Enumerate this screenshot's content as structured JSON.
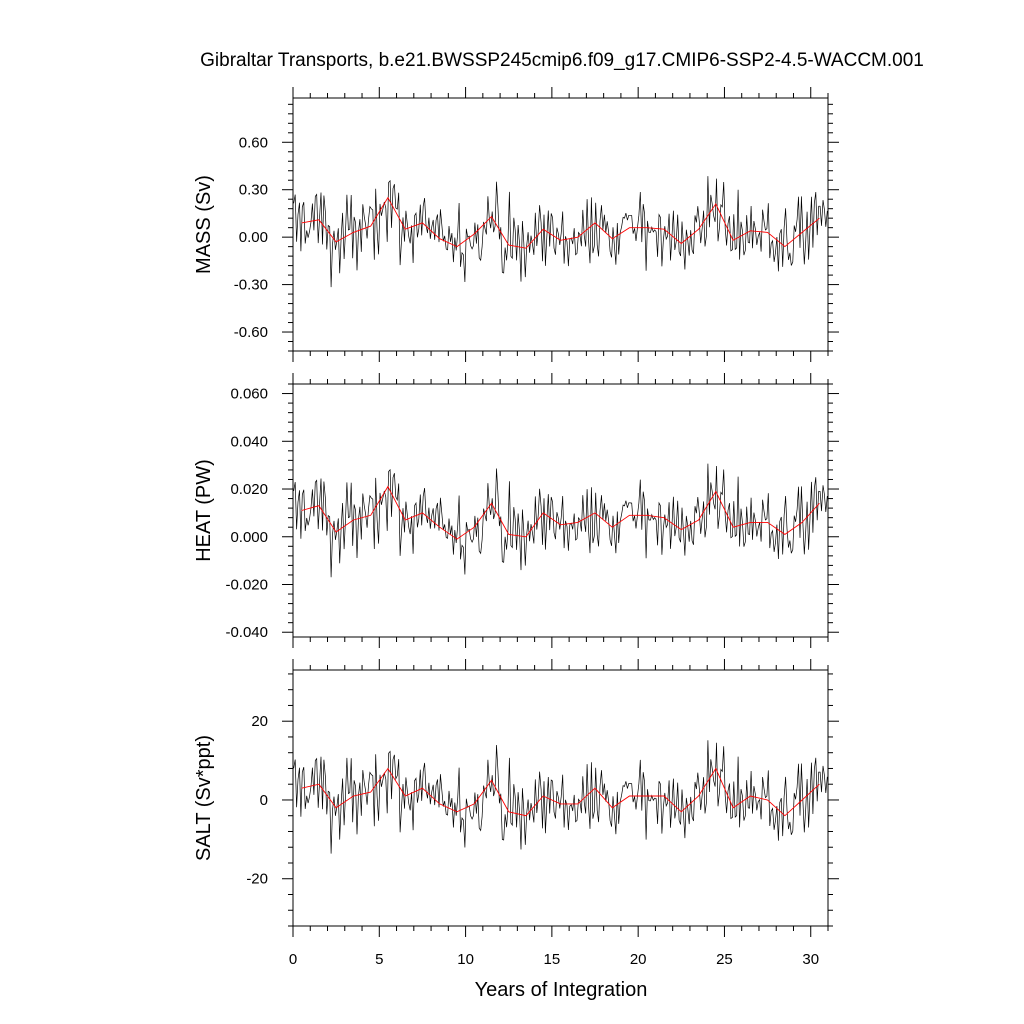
{
  "chart_data": {
    "type": "line",
    "title": "Gibraltar Transports, b.e21.BWSSP245cmip6.f09_g17.CMIP6-SSP2-4.5-WACCM.001",
    "xlabel": "Years of Integration",
    "xlim": [
      0,
      31
    ],
    "xticks": [
      0,
      5,
      10,
      15,
      20,
      25,
      30
    ],
    "xtick_labels": [
      "0",
      "5",
      "10",
      "15",
      "20",
      "25",
      "30"
    ],
    "smooth_x": [
      0.5,
      1.5,
      2.5,
      3.5,
      4.5,
      5.5,
      6.5,
      7.5,
      8.5,
      9.5,
      10.5,
      11.5,
      12.5,
      13.5,
      14.5,
      15.5,
      16.5,
      17.5,
      18.5,
      19.5,
      20.5,
      21.5,
      22.5,
      23.5,
      24.5,
      25.5,
      26.5,
      27.5,
      28.5,
      29.5,
      30.5
    ],
    "panels": [
      {
        "ylabel": "MASS (Sv)",
        "ylim": [
          -0.72,
          0.88
        ],
        "yticks": [
          -0.6,
          -0.3,
          0.0,
          0.3,
          0.6
        ],
        "ytick_labels": [
          "-0.60",
          "-0.30",
          "0.00",
          "0.30",
          "0.60"
        ],
        "series": [
          {
            "values": [
              0.09,
              0.11,
              -0.03,
              0.03,
              0.07,
              0.25,
              0.05,
              0.09,
              -0.01,
              -0.06,
              0.02,
              0.13,
              -0.05,
              -0.07,
              0.05,
              -0.02,
              0.0,
              0.09,
              -0.01,
              0.06,
              0.06,
              0.05,
              -0.04,
              0.05,
              0.21,
              -0.02,
              0.04,
              0.03,
              -0.06,
              0.03,
              0.12
            ]
          }
        ]
      },
      {
        "ylabel": "HEAT (PW)",
        "ylim": [
          -0.042,
          0.064
        ],
        "yticks": [
          -0.04,
          -0.02,
          0.0,
          0.02,
          0.04,
          0.06
        ],
        "ytick_labels": [
          "-0.040",
          "-0.020",
          "0.000",
          "0.020",
          "0.040",
          "0.060"
        ],
        "series": [
          {
            "values": [
              0.011,
              0.013,
              0.002,
              0.007,
              0.009,
              0.021,
              0.007,
              0.01,
              0.004,
              -0.001,
              0.004,
              0.014,
              0.001,
              0.0,
              0.01,
              0.005,
              0.006,
              0.01,
              0.004,
              0.009,
              0.009,
              0.008,
              0.003,
              0.007,
              0.019,
              0.004,
              0.006,
              0.006,
              0.001,
              0.006,
              0.014
            ]
          }
        ]
      },
      {
        "ylabel": "SALT (Sv*ppt)",
        "ylim": [
          -32,
          33
        ],
        "yticks": [
          -20,
          0,
          20
        ],
        "ytick_labels": [
          "-20",
          "0",
          "20"
        ],
        "series": [
          {
            "values": [
              3,
              4,
              -2,
              1,
              2,
              8,
              1,
              3,
              -1,
              -3,
              -1,
              5,
              -3,
              -4,
              1,
              -1,
              -1,
              3,
              -2,
              1,
              1,
              1,
              -3,
              1,
              8,
              -2,
              1,
              0,
              -4,
              0,
              4
            ]
          }
        ]
      }
    ]
  }
}
